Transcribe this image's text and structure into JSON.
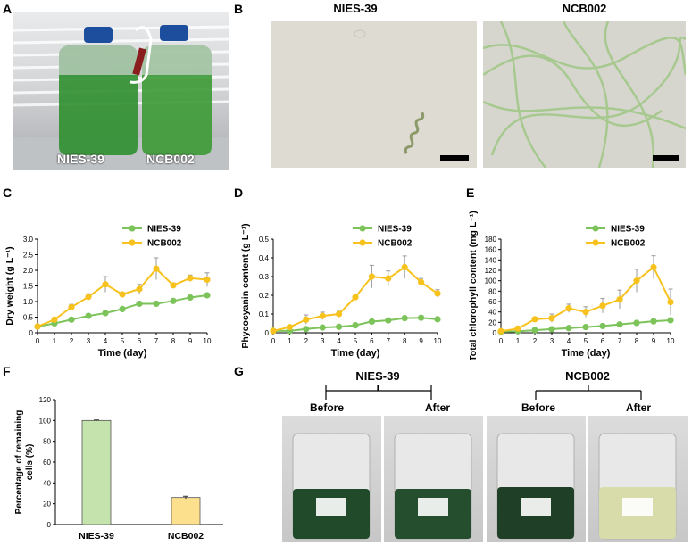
{
  "panels": {
    "A": {
      "letter": "A",
      "label_left": "NIES-39",
      "label_right": "NCB002"
    },
    "B": {
      "letter": "B",
      "title_left": "NIES-39",
      "title_right": "NCB002"
    },
    "C": {
      "letter": "C"
    },
    "D": {
      "letter": "D"
    },
    "E": {
      "letter": "E"
    },
    "F": {
      "letter": "F"
    },
    "G": {
      "letter": "G",
      "group_left": "NIES-39",
      "group_right": "NCB002",
      "labels": [
        "Before",
        "After",
        "Before",
        "After"
      ]
    }
  },
  "colors": {
    "nies": "#7cc35a",
    "ncb": "#f7c21d",
    "bar_nies": "#c5e3ad",
    "bar_ncb": "#fde08e",
    "errorbar": "#999999"
  },
  "chart_data": [
    {
      "id": "C",
      "type": "line",
      "x": [
        0,
        1,
        2,
        3,
        4,
        5,
        6,
        7,
        8,
        9,
        10
      ],
      "xlabel": "Time (day)",
      "ylabel": "Dry weight (g L⁻¹)",
      "xlim": [
        0,
        10
      ],
      "ylim": [
        0,
        3.0
      ],
      "yticks": [
        "0",
        "0.5",
        "1.0",
        "1.5",
        "2.0",
        "2.5",
        "3.0"
      ],
      "ytick_values": [
        0,
        0.5,
        1.0,
        1.5,
        2.0,
        2.5,
        3.0
      ],
      "legend_position": "top-right",
      "series": [
        {
          "name": "NIES-39",
          "color_key": "nies",
          "values": [
            0.2,
            0.3,
            0.42,
            0.54,
            0.63,
            0.76,
            0.93,
            0.93,
            1.02,
            1.13,
            1.2
          ],
          "errors": [
            0.02,
            0.02,
            0.02,
            0.03,
            0.03,
            0.03,
            0.04,
            0.04,
            0.04,
            0.05,
            0.07
          ]
        },
        {
          "name": "NCB002",
          "color_key": "ncb",
          "values": [
            0.2,
            0.42,
            0.82,
            1.15,
            1.55,
            1.23,
            1.4,
            2.05,
            1.52,
            1.75,
            1.7
          ],
          "errors": [
            0.02,
            0.05,
            0.09,
            0.1,
            0.25,
            0.06,
            0.15,
            0.35,
            0.08,
            0.1,
            0.22
          ]
        }
      ]
    },
    {
      "id": "D",
      "type": "line",
      "x": [
        0,
        1,
        2,
        3,
        4,
        5,
        6,
        7,
        8,
        9,
        10
      ],
      "xlabel": "Time (day)",
      "ylabel": "Phycocyanin content (g L⁻¹)",
      "xlim": [
        0,
        10
      ],
      "ylim": [
        0,
        0.5
      ],
      "yticks": [
        "0",
        "0.1",
        "0.2",
        "0.3",
        "0.4",
        "0.5"
      ],
      "ytick_values": [
        0,
        0.1,
        0.2,
        0.3,
        0.4,
        0.5
      ],
      "legend_position": "top-right",
      "series": [
        {
          "name": "NIES-39",
          "color_key": "nies",
          "values": [
            0.01,
            0.01,
            0.02,
            0.028,
            0.032,
            0.04,
            0.06,
            0.066,
            0.078,
            0.08,
            0.072
          ],
          "errors": [
            0.002,
            0.002,
            0.003,
            0.003,
            0.003,
            0.004,
            0.005,
            0.005,
            0.006,
            0.006,
            0.006
          ]
        },
        {
          "name": "NCB002",
          "color_key": "ncb",
          "values": [
            0.01,
            0.03,
            0.07,
            0.09,
            0.1,
            0.19,
            0.3,
            0.29,
            0.35,
            0.27,
            0.21
          ],
          "errors": [
            0.005,
            0.01,
            0.025,
            0.02,
            0.015,
            0.01,
            0.06,
            0.04,
            0.06,
            0.02,
            0.02
          ]
        }
      ]
    },
    {
      "id": "E",
      "type": "line",
      "x": [
        0,
        1,
        2,
        3,
        4,
        5,
        6,
        7,
        8,
        9,
        10
      ],
      "xlabel": "Time (day)",
      "ylabel": "Total chlorophyll content (mg L⁻¹)",
      "xlim": [
        0,
        10
      ],
      "ylim": [
        0,
        180
      ],
      "yticks": [
        "0",
        "20",
        "40",
        "60",
        "80",
        "100",
        "120",
        "140",
        "160",
        "180"
      ],
      "ytick_values": [
        0,
        20,
        40,
        60,
        80,
        100,
        120,
        140,
        160,
        180
      ],
      "legend_position": "top-right",
      "series": [
        {
          "name": "NIES-39",
          "color_key": "nies",
          "values": [
            2,
            3,
            5,
            7,
            9,
            11,
            13,
            16,
            19,
            22,
            24
          ],
          "errors": [
            0.5,
            0.5,
            0.8,
            1,
            1,
            1.5,
            1.5,
            2,
            2,
            2.5,
            3
          ]
        },
        {
          "name": "NCB002",
          "color_key": "ncb",
          "values": [
            3,
            8,
            26,
            28,
            47,
            40,
            52,
            64,
            100,
            126,
            59
          ],
          "errors": [
            1,
            3,
            4,
            8,
            8,
            10,
            14,
            18,
            22,
            22,
            25
          ]
        }
      ]
    },
    {
      "id": "F",
      "type": "bar",
      "categories": [
        "NIES-39",
        "NCB002"
      ],
      "values": [
        100,
        26
      ],
      "errors": [
        0.5,
        1.2
      ],
      "ylabel": "Percentage of remaining cells (%)",
      "ylim": [
        0,
        120
      ],
      "yticks": [
        "0",
        "20",
        "40",
        "60",
        "80",
        "100",
        "120"
      ],
      "ytick_values": [
        0,
        20,
        40,
        60,
        80,
        100,
        120
      ]
    }
  ]
}
